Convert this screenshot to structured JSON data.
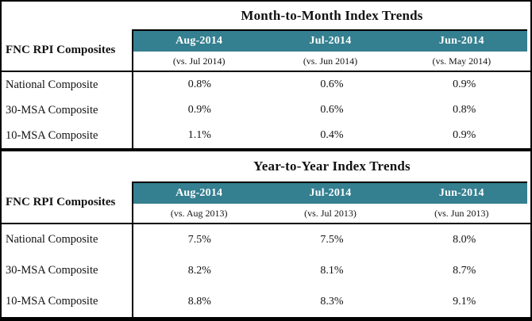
{
  "colors": {
    "header_bg": "#347F90",
    "header_text": "#FFFFFF",
    "border": "#000000"
  },
  "tables": [
    {
      "title": "Month-to-Month Index Trends",
      "row_header": "FNC RPI Composites",
      "columns": [
        {
          "month": "Aug-2014",
          "vs": "(vs. Jul 2014)"
        },
        {
          "month": "Jul-2014",
          "vs": "(vs. Jun 2014)"
        },
        {
          "month": "Jun-2014",
          "vs": "(vs. May 2014)"
        }
      ],
      "rows": [
        {
          "label": "National Composite",
          "values": [
            "0.8%",
            "0.6%",
            "0.9%"
          ]
        },
        {
          "label": "30-MSA Composite",
          "values": [
            "0.9%",
            "0.6%",
            "0.8%"
          ]
        },
        {
          "label": "10-MSA Composite",
          "values": [
            "1.1%",
            "0.4%",
            "0.9%"
          ]
        }
      ]
    },
    {
      "title": "Year-to-Year Index Trends",
      "row_header": "FNC RPI Composites",
      "columns": [
        {
          "month": "Aug-2014",
          "vs": "(vs. Aug 2013)"
        },
        {
          "month": "Jul-2014",
          "vs": "(vs. Jul 2013)"
        },
        {
          "month": "Jun-2014",
          "vs": "(vs. Jun 2013)"
        }
      ],
      "rows": [
        {
          "label": "National Composite",
          "values": [
            "7.5%",
            "7.5%",
            "8.0%"
          ]
        },
        {
          "label": "30-MSA Composite",
          "values": [
            "8.2%",
            "8.1%",
            "8.7%"
          ]
        },
        {
          "label": "10-MSA Composite",
          "values": [
            "8.8%",
            "8.3%",
            "9.1%"
          ]
        }
      ]
    }
  ]
}
